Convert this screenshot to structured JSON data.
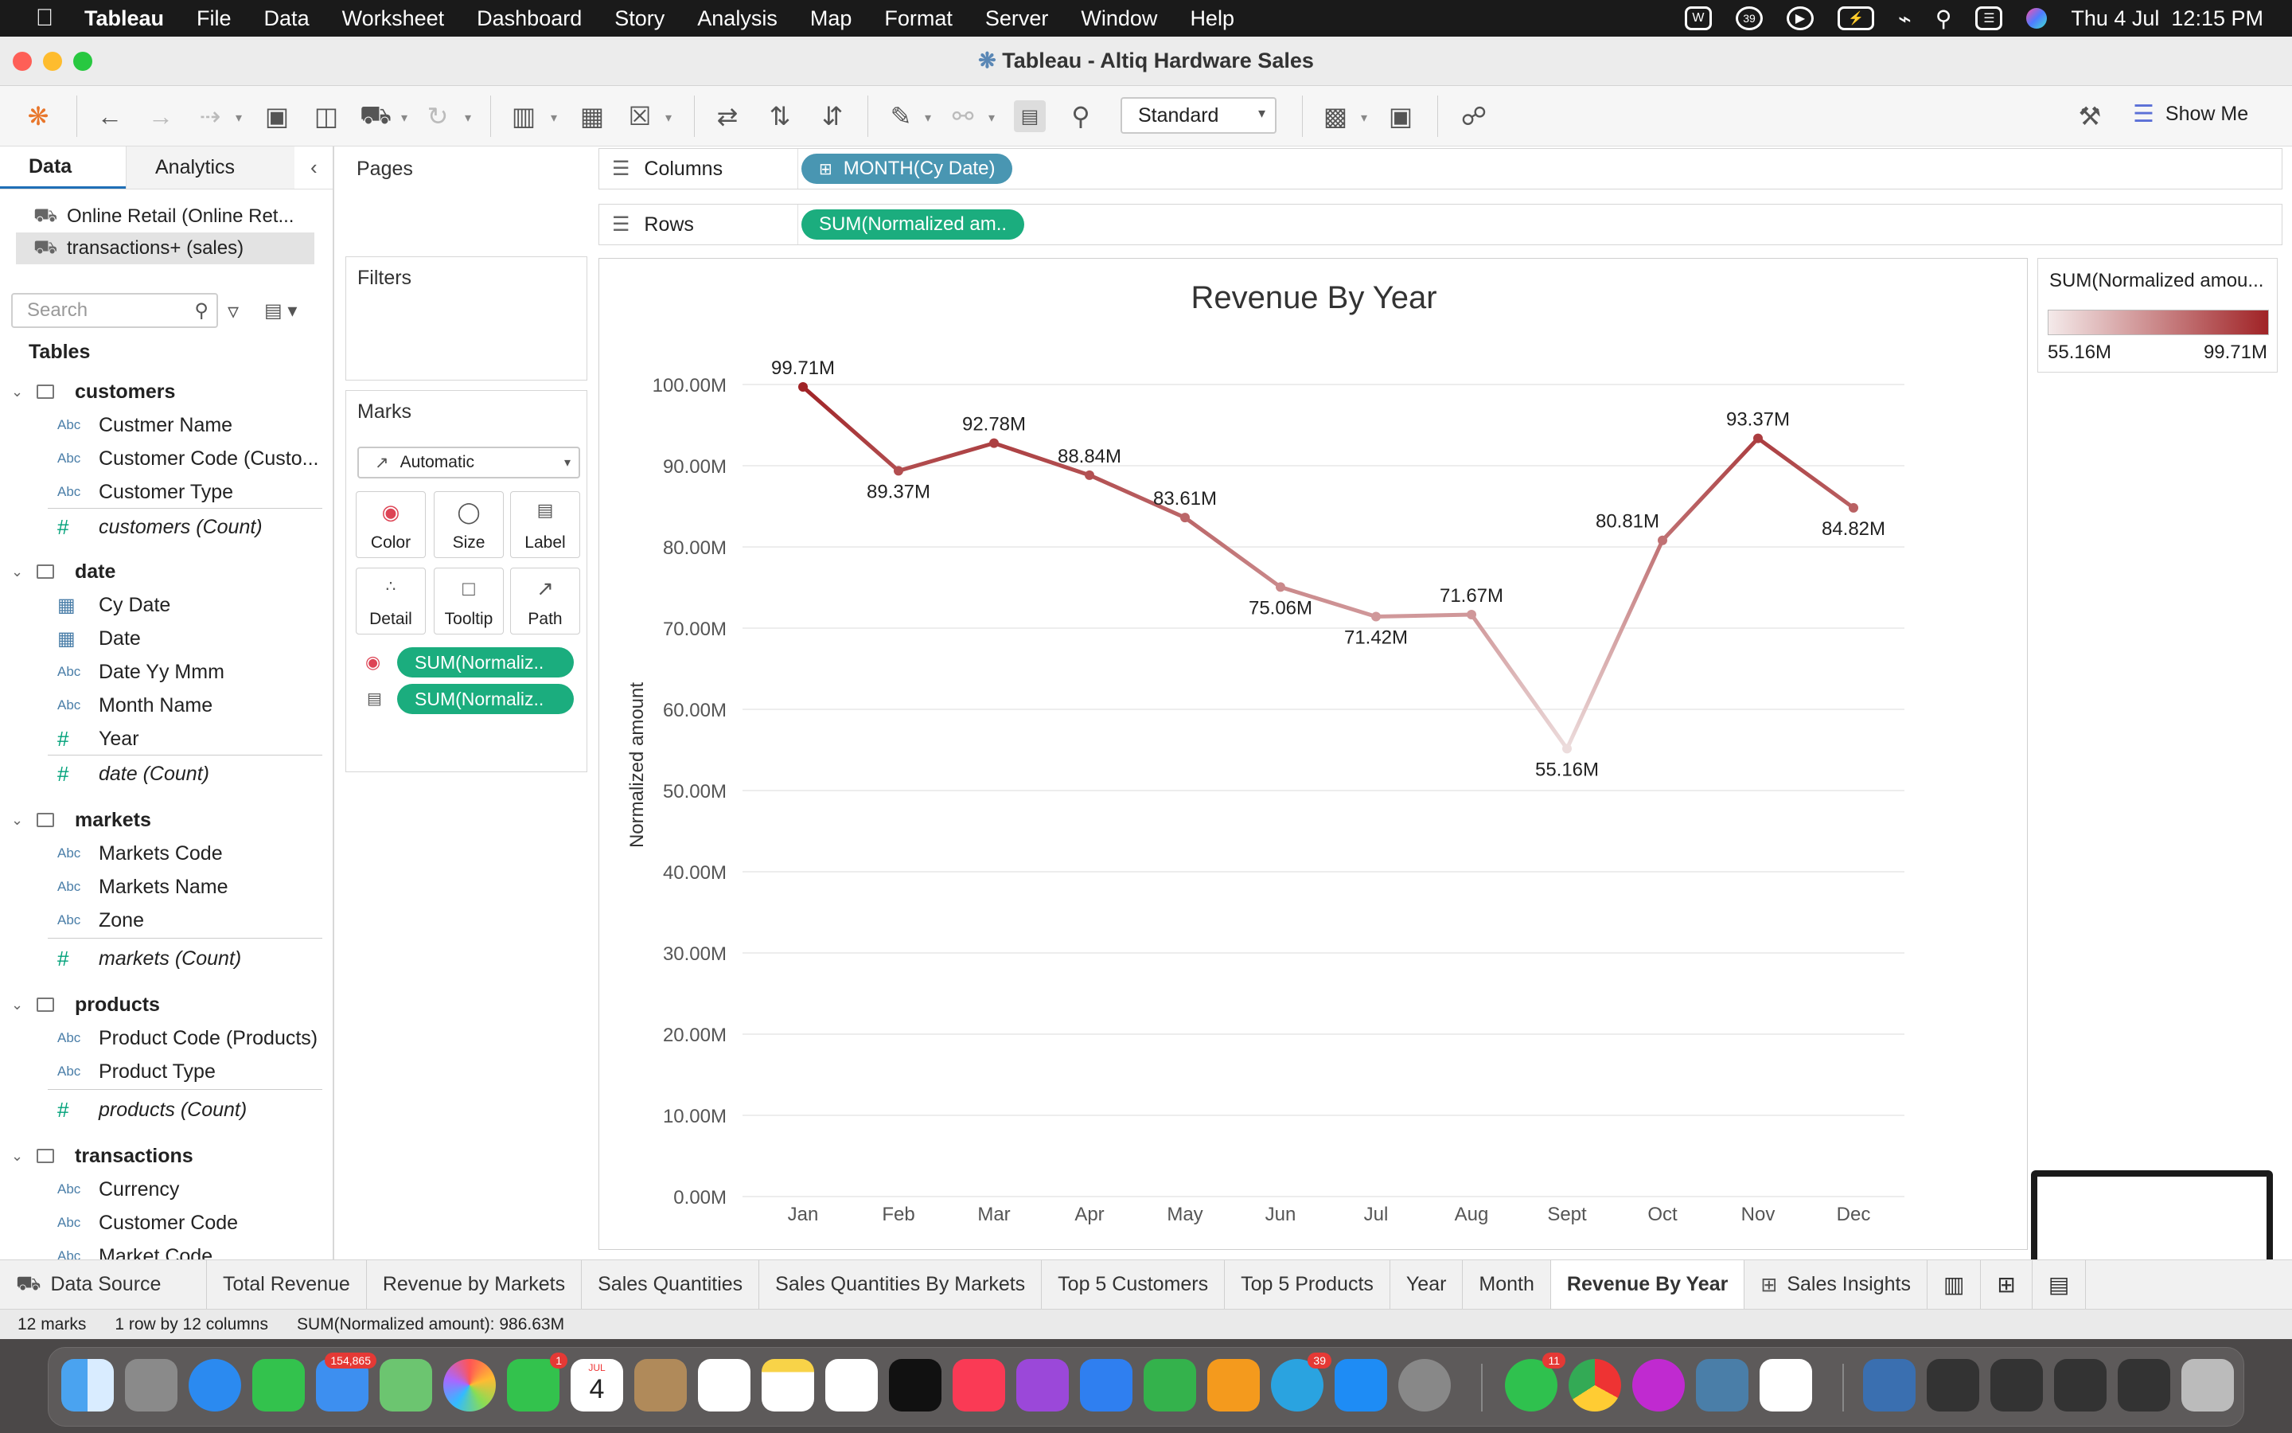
{
  "menubar": {
    "app": "Tableau",
    "items": [
      "File",
      "Data",
      "Worksheet",
      "Dashboard",
      "Story",
      "Analysis",
      "Map",
      "Format",
      "Server",
      "Window",
      "Help"
    ],
    "clock": "Thu 4 Jul  12:15 PM",
    "notification_count": "39"
  },
  "window": {
    "title": "Tableau - Altiq Hardware Sales"
  },
  "toolbar": {
    "fit_mode": "Standard",
    "show_me": "Show Me"
  },
  "data_pane": {
    "tab_data": "Data",
    "tab_analytics": "Analytics",
    "sources": [
      "Online Retail (Online Ret...",
      "transactions+ (sales)"
    ],
    "search_placeholder": "Search",
    "tables_heading": "Tables",
    "tables": [
      {
        "name": "customers",
        "fields": [
          {
            "type": "Abc",
            "name": "Custmer Name"
          },
          {
            "type": "Abc",
            "name": "Customer Code (Custo..."
          },
          {
            "type": "Abc",
            "name": "Customer Type"
          },
          {
            "type": "#",
            "name": "customers (Count)"
          }
        ]
      },
      {
        "name": "date",
        "fields": [
          {
            "type": "cal",
            "name": "Cy Date"
          },
          {
            "type": "cal",
            "name": "Date"
          },
          {
            "type": "Abc",
            "name": "Date Yy Mmm"
          },
          {
            "type": "Abc",
            "name": "Month Name"
          },
          {
            "type": "#",
            "name": "Year"
          },
          {
            "type": "#",
            "name": "date (Count)"
          }
        ]
      },
      {
        "name": "markets",
        "fields": [
          {
            "type": "Abc",
            "name": "Markets Code"
          },
          {
            "type": "Abc",
            "name": "Markets Name"
          },
          {
            "type": "Abc",
            "name": "Zone"
          },
          {
            "type": "#",
            "name": "markets (Count)"
          }
        ]
      },
      {
        "name": "products",
        "fields": [
          {
            "type": "Abc",
            "name": "Product Code (Products)"
          },
          {
            "type": "Abc",
            "name": "Product Type"
          },
          {
            "type": "#",
            "name": "products (Count)"
          }
        ]
      },
      {
        "name": "transactions",
        "fields": [
          {
            "type": "Abc",
            "name": "Currency"
          },
          {
            "type": "Abc",
            "name": "Customer Code"
          },
          {
            "type": "Abc",
            "name": "Market Code"
          }
        ]
      }
    ]
  },
  "cards": {
    "pages": "Pages",
    "filters": "Filters",
    "marks": "Marks",
    "mark_type": "Automatic",
    "mark_buttons": [
      "Color",
      "Size",
      "Label",
      "Detail",
      "Tooltip",
      "Path"
    ],
    "mark_pills": [
      "SUM(Normaliz..",
      "SUM(Normaliz.."
    ]
  },
  "shelves": {
    "columns_label": "Columns",
    "columns_pill": "MONTH(Cy Date)",
    "rows_label": "Rows",
    "rows_pill": "SUM(Normalized am.."
  },
  "legend": {
    "title": "SUM(Normalized amou...",
    "min": "55.16M",
    "max": "99.71M"
  },
  "chart_data": {
    "type": "line",
    "title": "Revenue By Year",
    "xlabel": "",
    "ylabel": "Normalized amount",
    "categories": [
      "Jan",
      "Feb",
      "Mar",
      "Apr",
      "May",
      "Jun",
      "Jul",
      "Aug",
      "Sept",
      "Oct",
      "Nov",
      "Dec"
    ],
    "values": [
      99.71,
      89.37,
      92.78,
      88.84,
      83.61,
      75.06,
      71.42,
      71.67,
      55.16,
      80.81,
      93.37,
      84.82
    ],
    "labels": [
      "99.71M",
      "89.37M",
      "92.78M",
      "88.84M",
      "83.61M",
      "75.06M",
      "71.42M",
      "71.67M",
      "55.16M",
      "80.81M",
      "93.37M",
      "84.82M"
    ],
    "unit": "M",
    "ylim": [
      0,
      100
    ],
    "yticks": [
      "0.00M",
      "10.00M",
      "20.00M",
      "30.00M",
      "40.00M",
      "50.00M",
      "60.00M",
      "70.00M",
      "80.00M",
      "90.00M",
      "100.00M"
    ],
    "grid": true,
    "color_low": "#ecdcdc",
    "color_high": "#a02326"
  },
  "sheet_tabs": {
    "data_source": "Data Source",
    "tabs": [
      "Total Revenue",
      "Revenue by Markets",
      "Sales Quantities",
      "Sales Quantities By Markets",
      "Top 5 Customers",
      "Top 5 Products",
      "Year",
      "Month",
      "Revenue By Year",
      "Sales Insights"
    ],
    "active": "Revenue By Year"
  },
  "statusbar": {
    "marks": "12 marks",
    "dims": "1 row by 12 columns",
    "sum": "SUM(Normalized amount): 986.63M"
  },
  "dock": {
    "mail_badge": "154,865",
    "facetime_badge": "1",
    "telegram_badge": "39",
    "whatsapp_badge": "11",
    "calendar_month": "JUL",
    "calendar_day": "4"
  }
}
